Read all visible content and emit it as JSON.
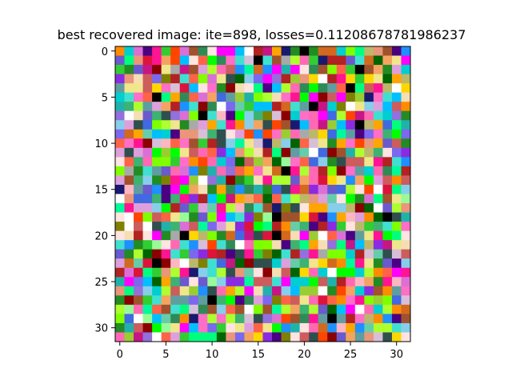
{
  "chart_data": {
    "type": "heatmap",
    "title": "best recovered image: ite=898, losses=0.11208678781986237",
    "grid": false,
    "rows": 32,
    "cols": 32,
    "xlim": [
      -0.5,
      31.5
    ],
    "ylim": [
      31.5,
      -0.5
    ],
    "x_ticks": [
      0,
      5,
      10,
      15,
      20,
      25,
      30
    ],
    "y_ticks": [
      0,
      5,
      10,
      15,
      20,
      25,
      30
    ],
    "x_tick_labels": [
      "0",
      "5",
      "10",
      "15",
      "20",
      "25",
      "30"
    ],
    "y_tick_labels": [
      "0",
      "5",
      "10",
      "15",
      "20",
      "25",
      "30"
    ],
    "pixel_content": "random noise RGB image (per-pixel colors not individually recoverable)",
    "palette": [
      "#2e8b57",
      "#ff6ec7",
      "#8a2be2",
      "#00ff7f",
      "#ff4500",
      "#1e90ff",
      "#adff2f",
      "#ff1493",
      "#00ced1",
      "#ffa500",
      "#9acd32",
      "#dc143c",
      "#4169e1",
      "#7fff00",
      "#ff00ff",
      "#20b2aa",
      "#b22222",
      "#ffd700",
      "#6a5acd",
      "#00fa9a",
      "#ff69b4",
      "#228b22",
      "#d2691e",
      "#87ceeb",
      "#8b0000",
      "#00bfff",
      "#ff8c00",
      "#32cd32",
      "#c71585",
      "#f0e68c",
      "#4b0082",
      "#40e0d0",
      "#a0522d",
      "#7b68ee",
      "#00ff00",
      "#ff6347",
      "#3cb371",
      "#da70d6",
      "#191970",
      "#98fb98",
      "#e9967a",
      "#5f9ea0",
      "#f4a460",
      "#9370db",
      "#66cdaa",
      "#cd5c5c",
      "#bdb76b",
      "#ffb6c1",
      "#006400",
      "#ffe4e1",
      "#2f4f4f",
      "#dda0dd",
      "#808000",
      "#f5deb3",
      "#ffffff",
      "#000000",
      "#a9a9a9",
      "#d8bfd8"
    ]
  }
}
